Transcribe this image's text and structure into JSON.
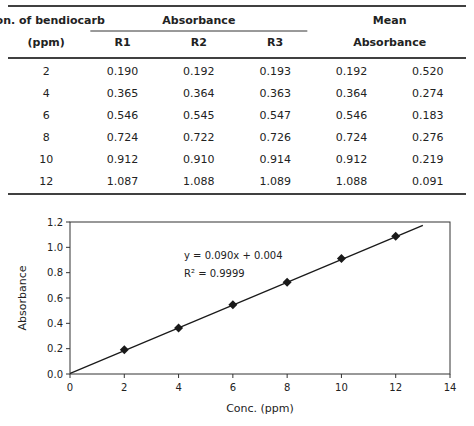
{
  "chart_data": [
    {
      "type": "table",
      "header": [
        [
          "Con. of bendiocarb",
          "Absorbance",
          "Mean"
        ],
        [
          "(ppm)",
          "R1",
          "R2",
          "R3",
          "Absorbance"
        ]
      ],
      "rows": [
        {
          "values": [
            2,
            0.19,
            0.192,
            0.193,
            0.192,
            0.52
          ],
          "value_labels": [
            "2",
            "0.190",
            "0.192",
            "0.193",
            "0.192",
            "0.520"
          ]
        },
        {
          "values": [
            4,
            0.365,
            0.364,
            0.363,
            0.364,
            0.274
          ],
          "value_labels": [
            "4",
            "0.365",
            "0.364",
            "0.363",
            "0.364",
            "0.274"
          ]
        },
        {
          "values": [
            6,
            0.546,
            0.545,
            0.547,
            0.546,
            0.183
          ],
          "value_labels": [
            "6",
            "0.546",
            "0.545",
            "0.547",
            "0.546",
            "0.183"
          ]
        },
        {
          "values": [
            8,
            0.724,
            0.722,
            0.726,
            0.724,
            0.276
          ],
          "value_labels": [
            "8",
            "0.724",
            "0.722",
            "0.726",
            "0.724",
            "0.276"
          ]
        },
        {
          "values": [
            10,
            0.912,
            0.91,
            0.914,
            0.912,
            0.219
          ],
          "value_labels": [
            "10",
            "0.912",
            "0.910",
            "0.914",
            "0.912",
            "0.219"
          ]
        },
        {
          "values": [
            12,
            1.087,
            1.088,
            1.089,
            1.088,
            0.091
          ],
          "value_labels": [
            "12",
            "1.087",
            "1.088",
            "1.089",
            "1.088",
            "0.091"
          ]
        }
      ]
    },
    {
      "type": "scatter",
      "xlabel": "Conc. (ppm)",
      "ylabel": "Absorbance",
      "annotations": [
        "y = 0.090x + 0.004",
        "R² = 0.9999"
      ],
      "series": [
        {
          "type": "scatter",
          "marker": "diamond",
          "color": "#1a1a1a",
          "x": [
            2,
            4,
            6,
            8,
            10,
            12
          ],
          "values": [
            0.192,
            0.364,
            0.546,
            0.724,
            0.912,
            1.088
          ]
        },
        {
          "type": "line",
          "line_style": "solid",
          "color": "#1a1a1a",
          "x": [
            0,
            13
          ],
          "values": [
            0.004,
            1.174
          ]
        }
      ],
      "xlim": [
        0,
        14
      ],
      "ylim": [
        0,
        1.2
      ],
      "xticks": [
        0,
        2,
        4,
        6,
        8,
        10,
        12,
        14
      ],
      "yticks": [
        {
          "value": 0,
          "label": "0.0"
        },
        0.2,
        0.4,
        0.6,
        0.8,
        {
          "value": 1.0,
          "label": "1.0"
        },
        1.2
      ],
      "grid": false
    }
  ]
}
